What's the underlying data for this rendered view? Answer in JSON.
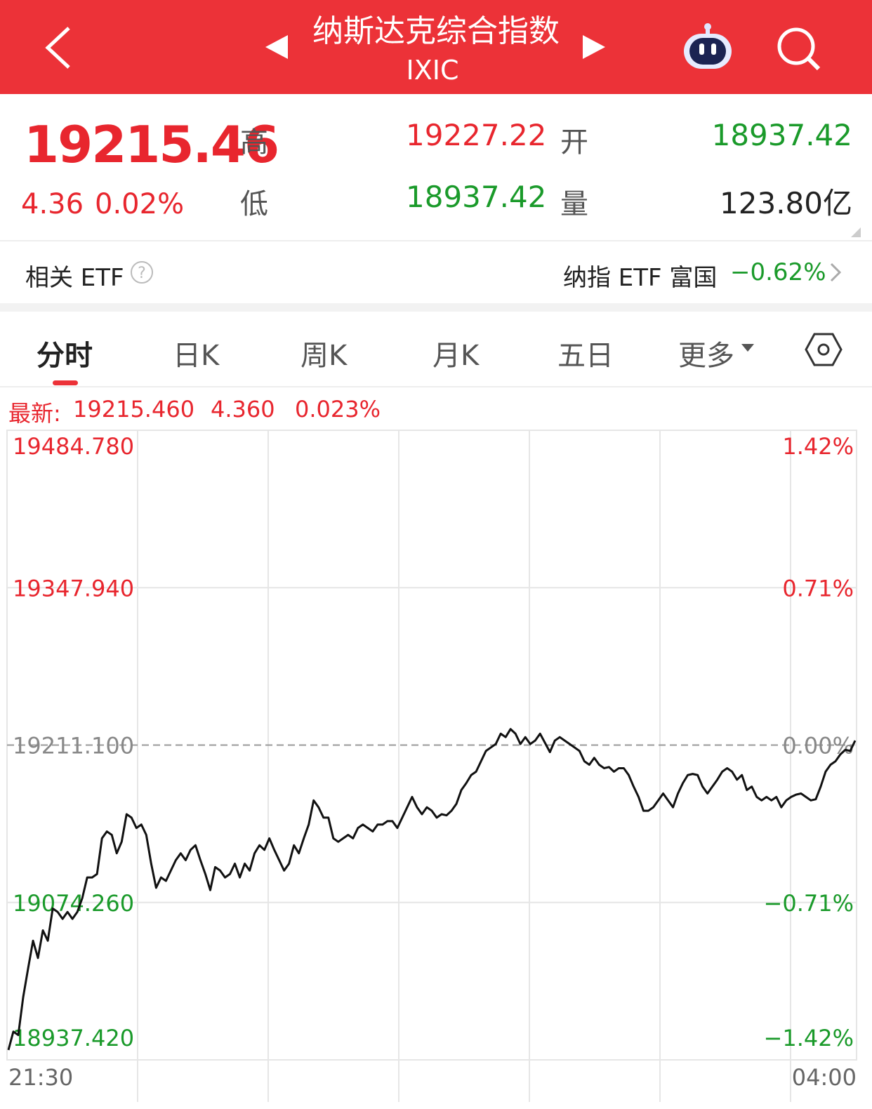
{
  "header": {
    "title": "纳斯达克综合指数",
    "code": "IXIC"
  },
  "quote": {
    "price": "19215.46",
    "change": "4.36",
    "change_pct": "0.02%",
    "high_label": "高",
    "high": "19227.22",
    "open_label": "开",
    "open": "18937.42",
    "low_label": "低",
    "low": "18937.42",
    "volume_label": "量",
    "volume": "123.80亿"
  },
  "etf": {
    "label": "相关 ETF",
    "fund": "纳指 ETF 富国",
    "change": "−0.62%"
  },
  "tabs": [
    "分时",
    "日K",
    "周K",
    "月K",
    "五日",
    "更多"
  ],
  "latest": {
    "label": "最新:",
    "price": "19215.460",
    "change": "4.360",
    "pct": "0.023%"
  },
  "chart_data": {
    "type": "line",
    "series": [
      {
        "color": "#111111",
        "values": [
          18946,
          18962,
          18959,
          18992,
          19017,
          19041,
          19026,
          19050,
          19041,
          19069,
          19066,
          19060,
          19066,
          19060,
          19066,
          19078,
          19096,
          19096,
          19099,
          19130,
          19136,
          19133,
          19117,
          19127,
          19151,
          19148,
          19139,
          19142,
          19133,
          19108,
          19087,
          19096,
          19093,
          19102,
          19111,
          19117,
          19111,
          19120,
          19124,
          19111,
          19099,
          19085,
          19105,
          19102,
          19096,
          19099,
          19108,
          19096,
          19108,
          19102,
          19117,
          19124,
          19120,
          19130,
          19120,
          19111,
          19102,
          19108,
          19124,
          19117,
          19130,
          19142,
          19163,
          19157,
          19148,
          19148,
          19130,
          19127,
          19130,
          19133,
          19130,
          19139,
          19142,
          19139,
          19136,
          19142,
          19142,
          19145,
          19145,
          19139,
          19148,
          19157,
          19166,
          19157,
          19151,
          19157,
          19154,
          19148,
          19151,
          19150,
          19154,
          19160,
          19172,
          19178,
          19185,
          19188,
          19197,
          19206,
          19209,
          19212,
          19221,
          19218,
          19225,
          19221,
          19212,
          19218,
          19212,
          19215,
          19221,
          19213,
          19205,
          19215,
          19218,
          19215,
          19212,
          19209,
          19206,
          19197,
          19194,
          19200,
          19194,
          19191,
          19192,
          19188,
          19191,
          19191,
          19185,
          19175,
          19166,
          19154,
          19154,
          19157,
          19163,
          19169,
          19163,
          19157,
          19169,
          19178,
          19185,
          19186,
          19185,
          19175,
          19169,
          19175,
          19181,
          19188,
          19191,
          19188,
          19181,
          19185,
          19172,
          19175,
          19166,
          19163,
          19166,
          19163,
          19166,
          19157,
          19163,
          19166,
          19168,
          19169,
          19166,
          19163,
          19164,
          19175,
          19188,
          19194,
          19197,
          19203,
          19207,
          19206,
          19215
        ]
      }
    ],
    "ylim": [
      18937.42,
      19484.78
    ],
    "yticks": [
      {
        "value": 19484.78,
        "label": "19484.780"
      },
      {
        "value": 19347.94,
        "label": "19347.940"
      },
      {
        "value": 19211.1,
        "label": "19211.100"
      },
      {
        "value": 19074.26,
        "label": "19074.260"
      },
      {
        "value": 18937.42,
        "label": "18937.420"
      }
    ],
    "y2lim": [
      -1.42,
      1.42
    ],
    "y2ticks": [
      {
        "value": 1.42,
        "label": "1.42%"
      },
      {
        "value": 0.71,
        "label": "0.71%"
      },
      {
        "value": 0,
        "label": "0.00%"
      },
      {
        "value": -0.71,
        "label": "−0.71%"
      },
      {
        "value": -1.42,
        "label": "−1.42%"
      }
    ],
    "x_labels": [
      "21:30",
      "04:00"
    ]
  }
}
